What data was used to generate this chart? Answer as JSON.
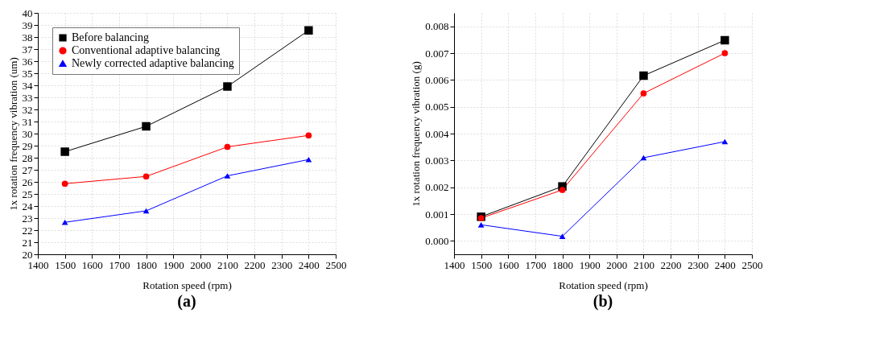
{
  "chart_data": [
    {
      "type": "line",
      "xlabel": "Rotation speed (rpm)",
      "ylabel": "1x rotation frequency vibration (um)",
      "annotations": [
        "(a)"
      ],
      "x": [
        1500,
        1800,
        2100,
        2400
      ],
      "xlim": [
        1400,
        2500
      ],
      "xticks": [
        1400,
        1500,
        1600,
        1700,
        1800,
        1900,
        2000,
        2100,
        2200,
        2300,
        2400,
        2500
      ],
      "ylim": [
        20,
        40
      ],
      "yticks": [
        20,
        21,
        22,
        23,
        24,
        25,
        26,
        27,
        28,
        29,
        30,
        31,
        32,
        33,
        34,
        35,
        36,
        37,
        38,
        39,
        40
      ],
      "grid": true,
      "legend": "top left",
      "line_style": "solid",
      "series": [
        {
          "name": "Before balancing",
          "color": "#000000",
          "marker": "square",
          "values": [
            28.5,
            30.6,
            33.9,
            38.55
          ]
        },
        {
          "name": "Conventional adaptive balancing",
          "color": "#ff0000",
          "marker": "circle",
          "values": [
            25.85,
            26.45,
            28.9,
            29.85
          ]
        },
        {
          "name": "Newly corrected adaptive balancing",
          "color": "#0000ff",
          "marker": "triangle",
          "values": [
            22.65,
            23.6,
            26.5,
            27.85
          ]
        }
      ]
    },
    {
      "type": "line",
      "xlabel": "Rotation speed (rpm)",
      "ylabel": "1x rotation frequency vibration (g)",
      "annotations": [
        "(b)"
      ],
      "x": [
        1500,
        1800,
        2100,
        2400
      ],
      "xlim": [
        1400,
        2500
      ],
      "xticks": [
        1400,
        1500,
        1600,
        1700,
        1800,
        1900,
        2000,
        2100,
        2200,
        2300,
        2400,
        2500
      ],
      "ylim": [
        -0.0005,
        0.0085
      ],
      "yticks": [
        {
          "value": 0,
          "label": "0.000"
        },
        0.001,
        0.002,
        0.003,
        0.004,
        0.005,
        0.006,
        0.007,
        0.008
      ],
      "grid": true,
      "legend": "top left",
      "line_style": "solid",
      "series": [
        {
          "name": "Before balancing",
          "color": "#000000",
          "marker": "square",
          "values": [
            0.0009,
            0.00203,
            0.00616,
            0.00748
          ]
        },
        {
          "name": "Conventional adaptive balancing",
          "color": "#ff0000",
          "marker": "circle",
          "values": [
            0.00085,
            0.0019,
            0.0055,
            0.007
          ]
        },
        {
          "name": "Newly corrected adaptive balancing",
          "color": "#0000ff",
          "marker": "triangle",
          "values": [
            0.0006,
            0.00017,
            0.0031,
            0.0037
          ]
        }
      ]
    }
  ]
}
